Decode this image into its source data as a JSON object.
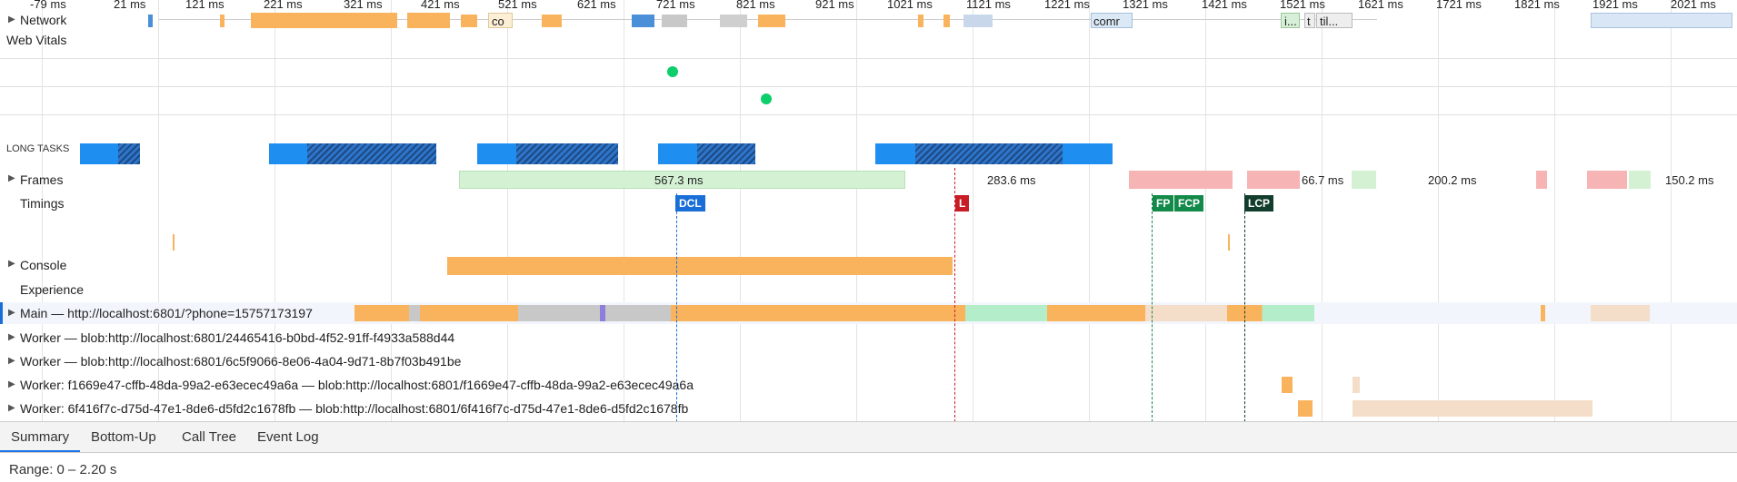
{
  "ruler": {
    "ticks": [
      "-79 ms",
      "21 ms",
      "121 ms",
      "221 ms",
      "321 ms",
      "421 ms",
      "521 ms",
      "621 ms",
      "721 ms",
      "821 ms",
      "921 ms",
      "1021 ms",
      "1121 ms",
      "1221 ms",
      "1321 ms",
      "1421 ms",
      "1521 ms",
      "1621 ms",
      "1721 ms",
      "1821 ms",
      "1921 ms",
      "2021 ms"
    ]
  },
  "network": {
    "label": "Network",
    "chips": [
      "co",
      "comr",
      "i...",
      "t",
      "til..."
    ]
  },
  "web_vitals": {
    "label": "Web Vitals"
  },
  "long_tasks": {
    "label": "LONG TASKS"
  },
  "frames": {
    "label": "Frames",
    "durations": [
      "567.3 ms",
      "283.6 ms",
      "66.7 ms",
      "200.2 ms",
      "150.2 ms"
    ]
  },
  "timings": {
    "label": "Timings",
    "markers": {
      "dcl": "DCL",
      "l": "L",
      "fp": "FP",
      "fcp": "FCP",
      "lcp": "LCP"
    }
  },
  "console": {
    "label": "Console"
  },
  "experience": {
    "label": "Experience"
  },
  "threads": [
    "Main — http://localhost:6801/?phone=15757173197",
    "Worker — blob:http://localhost:6801/24465416-b0bd-4f52-91ff-f4933a588d44",
    "Worker — blob:http://localhost:6801/6c5f9066-8e06-4a04-9d71-8b7f03b491be",
    "Worker: f1669e47-cffb-48da-99a2-e63ecec49a6a — blob:http://localhost:6801/f1669e47-cffb-48da-99a2-e63ecec49a6a",
    "Worker: 6f416f7c-d75d-47e1-8de6-d5fd2c1678fb — blob:http://localhost:6801/6f416f7c-d75d-47e1-8de6-d5fd2c1678fb"
  ],
  "tabs": [
    "Summary",
    "Bottom-Up",
    "Call Tree",
    "Event Log"
  ],
  "active_tab": "Summary",
  "range": "Range: 0 – 2.20 s",
  "colors": {
    "loading": "#f9b35d",
    "script_blue": "#1e8ef0",
    "dcl": "#1a6ed8",
    "load": "#c81d25",
    "fp": "#138a4a",
    "lcp": "#123d2c",
    "frame_green": "#d4f1d4",
    "frame_red": "#f7b4b4"
  }
}
